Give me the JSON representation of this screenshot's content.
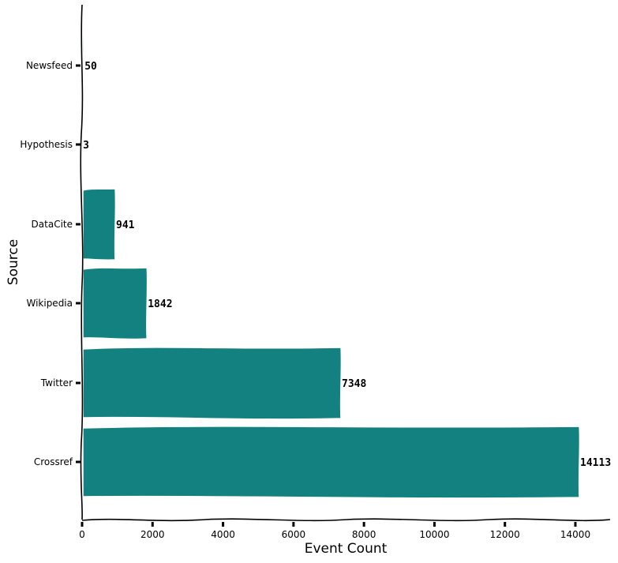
{
  "chart_data": {
    "type": "bar",
    "orientation": "horizontal",
    "style": "xkcd",
    "title": "",
    "xlabel": "Event Count",
    "ylabel": "Source",
    "categories": [
      "Crossref",
      "Twitter",
      "Wikipedia",
      "DataCite",
      "Hypothesis",
      "Newsfeed"
    ],
    "values": [
      14113,
      7348,
      1842,
      941,
      3,
      50
    ],
    "bar_labels": [
      "14113",
      "7348",
      "1842",
      "941",
      "3",
      "50"
    ],
    "xlim": [
      0,
      15000
    ],
    "xticks": [
      0,
      2000,
      4000,
      6000,
      8000,
      10000,
      12000,
      14000
    ],
    "xtick_labels": [
      "0",
      "2000",
      "4000",
      "6000",
      "8000",
      "10000",
      "12000",
      "14000"
    ],
    "grid": false,
    "legend": null,
    "bar_color": "#13817f"
  }
}
